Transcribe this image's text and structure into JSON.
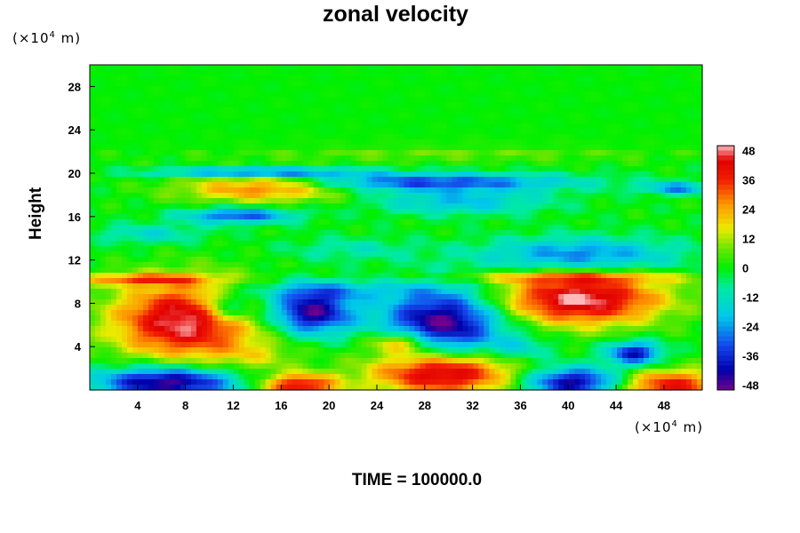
{
  "chart_data": {
    "type": "heatmap",
    "title": "zonal velocity",
    "xlabel": "",
    "ylabel": "Height",
    "x_unit_prefix": "(×10",
    "x_unit_exp": "4",
    "x_unit_suffix": " m)",
    "y_unit_prefix": "(×10",
    "y_unit_exp": "4",
    "y_unit_suffix": " m)",
    "xlim": [
      0,
      51.2
    ],
    "ylim": [
      0,
      30
    ],
    "xticks": [
      "4",
      "8",
      "12",
      "16",
      "20",
      "24",
      "28",
      "32",
      "36",
      "40",
      "44",
      "48"
    ],
    "yticks": [
      "4",
      "8",
      "12",
      "16",
      "20",
      "24",
      "28"
    ],
    "colorbar": {
      "range": [
        -50,
        50
      ],
      "ticks": [
        "48",
        "36",
        "24",
        "12",
        "0",
        "-12",
        "-24",
        "-36",
        "-48"
      ]
    },
    "background_value": 0,
    "features": [
      {
        "x": 8,
        "y": 6.4,
        "rx": 6.5,
        "ry": 3.8,
        "value": 50
      },
      {
        "x": 41,
        "y": 8.4,
        "rx": 7.5,
        "ry": 2.6,
        "value": 50
      },
      {
        "x": 29.5,
        "y": 1.6,
        "rx": 6.5,
        "ry": 2.2,
        "value": 50
      },
      {
        "x": 48.5,
        "y": 0.4,
        "rx": 5,
        "ry": 1.6,
        "value": 40
      },
      {
        "x": 17.5,
        "y": 0.4,
        "rx": 3.5,
        "ry": 1.2,
        "value": 42
      },
      {
        "x": 6.5,
        "y": 0.7,
        "rx": 6.5,
        "ry": 1.6,
        "value": -50
      },
      {
        "x": 29.5,
        "y": 6.2,
        "rx": 5.5,
        "ry": 3.5,
        "value": -50
      },
      {
        "x": 18.5,
        "y": 7.2,
        "rx": 3.8,
        "ry": 2.2,
        "value": -48
      },
      {
        "x": 40.5,
        "y": 0.7,
        "rx": 4.5,
        "ry": 1.5,
        "value": -46
      },
      {
        "x": 45.5,
        "y": 3.4,
        "rx": 2.5,
        "ry": 1.2,
        "value": -40
      },
      {
        "x": 11.5,
        "y": 7.6,
        "rx": 2.5,
        "ry": 1.6,
        "value": -28
      },
      {
        "x": 4.5,
        "y": 10.2,
        "rx": 6,
        "ry": 0.6,
        "value": 28
      },
      {
        "x": 40,
        "y": 10.4,
        "rx": 12,
        "ry": 0.55,
        "value": 20
      },
      {
        "x": 14.5,
        "y": 18.7,
        "rx": 7.5,
        "ry": 1.4,
        "value": 32
      },
      {
        "x": 12.5,
        "y": 16.1,
        "rx": 5,
        "ry": 0.8,
        "value": -32
      },
      {
        "x": 41,
        "y": 12.4,
        "rx": 9,
        "ry": 1.8,
        "value": -28
      },
      {
        "x": 28,
        "y": 19.2,
        "rx": 14,
        "ry": 0.9,
        "value": -32
      },
      {
        "x": 14,
        "y": 20.1,
        "rx": 9,
        "ry": 0.45,
        "value": -38
      },
      {
        "x": 31,
        "y": 17.4,
        "rx": 8,
        "ry": 1.3,
        "value": -20
      },
      {
        "x": 49,
        "y": 18.6,
        "rx": 3,
        "ry": 0.6,
        "value": -26
      },
      {
        "x": 5,
        "y": 14.4,
        "rx": 5,
        "ry": 1,
        "value": -14
      },
      {
        "x": 22,
        "y": 13.0,
        "rx": 6,
        "ry": 1.2,
        "value": -10
      },
      {
        "x": 30,
        "y": 22.2,
        "rx": 20,
        "ry": 1.2,
        "value": 8
      },
      {
        "x": 20,
        "y": 9.2,
        "rx": 8,
        "ry": 1,
        "value": -16
      },
      {
        "x": 26,
        "y": 4.4,
        "rx": 3,
        "ry": 1.2,
        "value": 30
      },
      {
        "x": 36,
        "y": 3.8,
        "rx": 3,
        "ry": 1.4,
        "value": -14
      },
      {
        "x": 14,
        "y": 3.0,
        "rx": 4,
        "ry": 1.6,
        "value": 10
      }
    ]
  }
}
